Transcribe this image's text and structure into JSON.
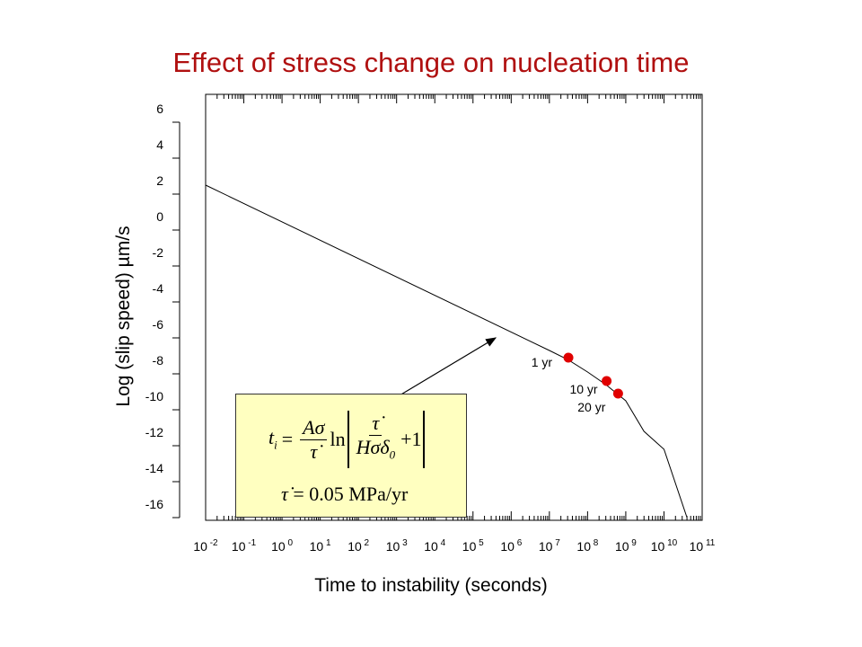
{
  "title": "Effect of stress change on nucleation time",
  "chart_data": {
    "type": "line",
    "title": "Effect of stress change on nucleation time",
    "xlabel": "Time to instability (seconds)",
    "ylabel": "Log (slip speed)  µm/s",
    "x_scale": "log",
    "xlim": [
      0.01,
      100000000000.0
    ],
    "ylim": [
      -16,
      6
    ],
    "x_tick_labels": [
      {
        "base": "10",
        "exp": "-2"
      },
      {
        "base": "10",
        "exp": "-1"
      },
      {
        "base": "10",
        "exp": "0"
      },
      {
        "base": "10",
        "exp": "1"
      },
      {
        "base": "10",
        "exp": "2"
      },
      {
        "base": "10",
        "exp": "3"
      },
      {
        "base": "10",
        "exp": "4"
      },
      {
        "base": "10",
        "exp": "5"
      },
      {
        "base": "10",
        "exp": "6"
      },
      {
        "base": "10",
        "exp": "7"
      },
      {
        "base": "10",
        "exp": "8"
      },
      {
        "base": "10",
        "exp": "9"
      },
      {
        "base": "10",
        "exp": "10"
      },
      {
        "base": "10",
        "exp": "11"
      }
    ],
    "y_ticks": [
      "6",
      "4",
      "2",
      "0",
      "-2",
      "-4",
      "-6",
      "-8",
      "-10",
      "-12",
      "-14",
      "-16"
    ],
    "series": [
      {
        "x": [
          0.01,
          10000000.0,
          30000000.0,
          100000000.0,
          300000000.0,
          1000000000.0,
          3000000000.0,
          10000000000.0,
          40000000000.0
        ],
        "y": [
          2.5,
          -6.7,
          -7.2,
          -7.9,
          -8.6,
          -9.5,
          -11.2,
          -12.2,
          -16
        ]
      }
    ],
    "markers": [
      {
        "label": "1 yr",
        "x": 31500000.0,
        "y": -7.1
      },
      {
        "label": "10 yr",
        "x": 315000000.0,
        "y": -8.4
      },
      {
        "label": "20 yr",
        "x": 630000000.0,
        "y": -9.1
      }
    ],
    "marker_color": "#e00000",
    "line_color": "#000000",
    "grid": false
  },
  "formula": {
    "t": "t",
    "i": "i",
    "eq": "=",
    "num1": "Aσ",
    "ln": "ln",
    "den_h": "Hσδ",
    "zero": "0",
    "plus_one": "+1",
    "rate_label": "= 0.05 MPa/yr"
  }
}
